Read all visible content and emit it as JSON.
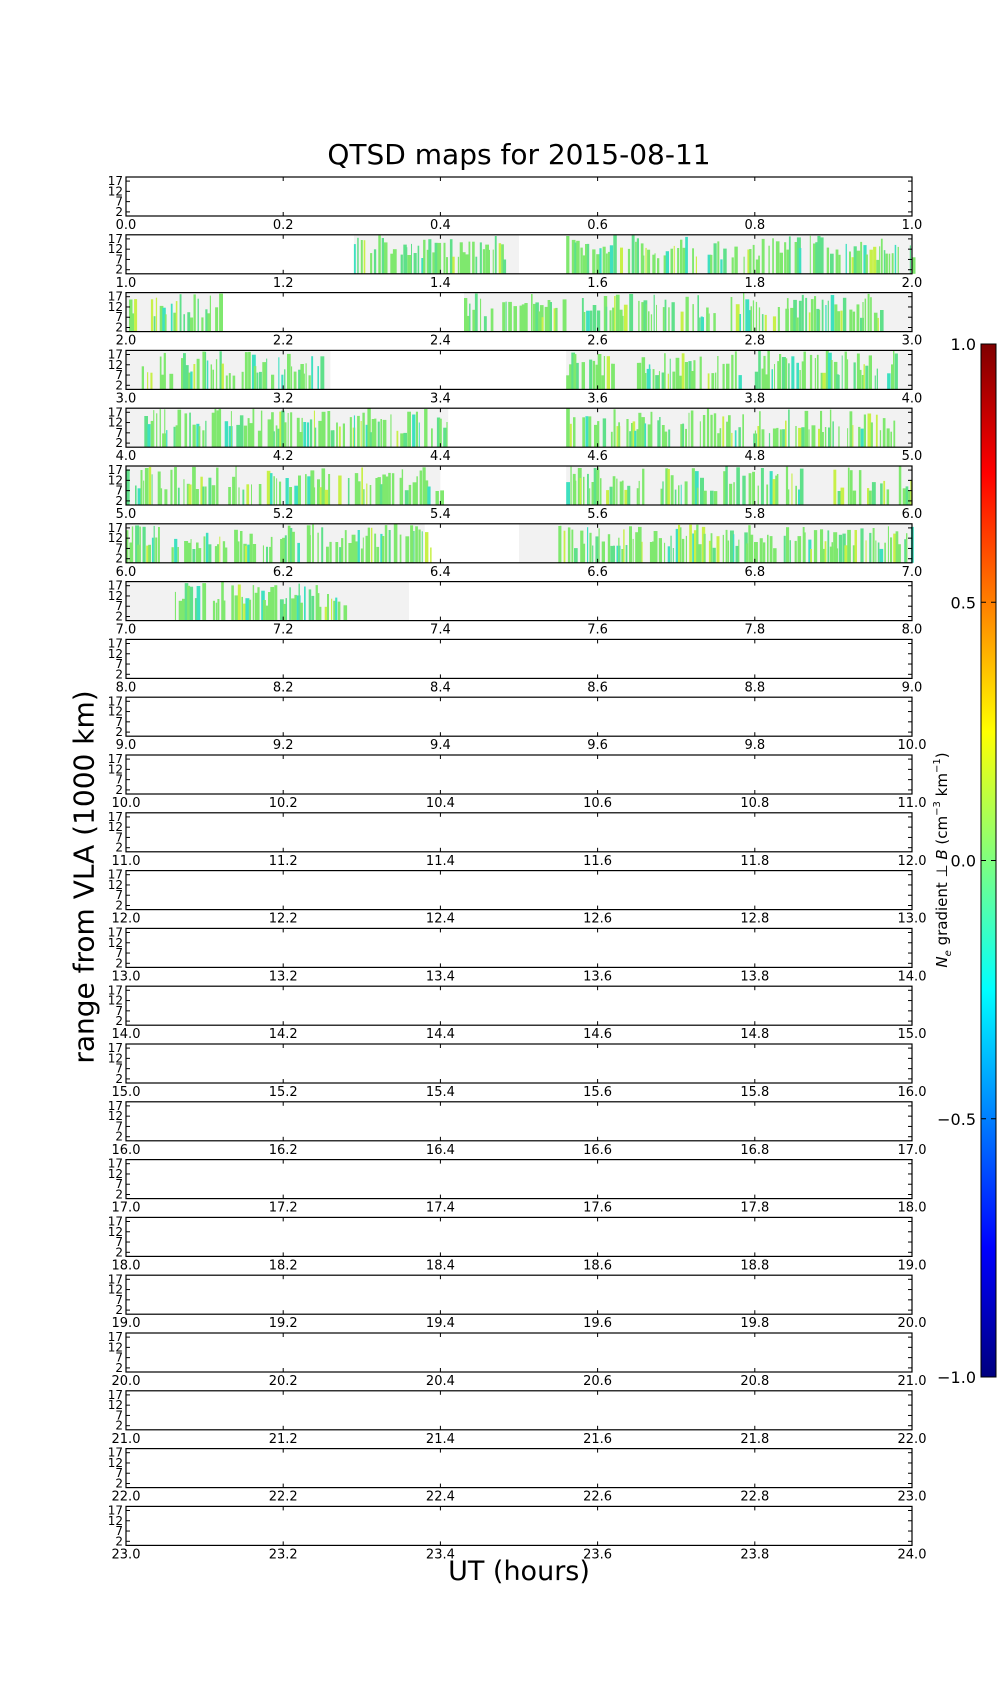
{
  "chart_data": {
    "type": "heatmap",
    "title": "QTSD maps for 2015-08-11",
    "xlabel": "UT (hours)",
    "ylabel": "range from VLA (1000 km)",
    "y_ticks": [
      "2",
      "7",
      "12",
      "17"
    ],
    "ylim": [
      0,
      19
    ],
    "panel_tick_step_hours": 0.2,
    "panels": [
      {
        "start": 0,
        "end": 1,
        "ticks": [
          "0.0",
          "0.2",
          "0.4",
          "0.6",
          "0.8",
          "1.0"
        ],
        "coverage": [],
        "activity": []
      },
      {
        "start": 1,
        "end": 2,
        "ticks": [
          "1.0",
          "1.2",
          "1.4",
          "1.6",
          "1.8",
          "2.0"
        ],
        "coverage": [
          [
            1.29,
            1.5
          ],
          [
            1.56,
            2.0
          ]
        ],
        "activity": [
          [
            1.29,
            1.48
          ],
          [
            1.56,
            1.73
          ],
          [
            1.74,
            1.86
          ],
          [
            1.87,
            2.0
          ]
        ]
      },
      {
        "start": 2,
        "end": 3,
        "ticks": [
          "2.0",
          "2.2",
          "2.4",
          "2.6",
          "2.8",
          "3.0"
        ],
        "coverage": [
          [
            2.0,
            2.12
          ],
          [
            2.43,
            3.0
          ]
        ],
        "activity": [
          [
            2.0,
            2.12
          ],
          [
            2.43,
            2.56
          ],
          [
            2.58,
            2.75
          ],
          [
            2.76,
            2.96
          ]
        ]
      },
      {
        "start": 3,
        "end": 4,
        "ticks": [
          "3.0",
          "3.2",
          "3.4",
          "3.6",
          "3.8",
          "4.0"
        ],
        "coverage": [
          [
            3.0,
            3.26
          ],
          [
            3.56,
            4.0
          ]
        ],
        "activity": [
          [
            3.02,
            3.06
          ],
          [
            3.07,
            3.25
          ],
          [
            3.56,
            3.62
          ],
          [
            3.65,
            3.78
          ],
          [
            3.8,
            3.98
          ]
        ]
      },
      {
        "start": 4,
        "end": 5,
        "ticks": [
          "4.0",
          "4.2",
          "4.4",
          "4.6",
          "4.8",
          "5.0"
        ],
        "coverage": [
          [
            4.0,
            4.41
          ],
          [
            4.56,
            5.0
          ]
        ],
        "activity": [
          [
            4.02,
            4.24
          ],
          [
            4.24,
            4.29
          ],
          [
            4.29,
            4.41
          ],
          [
            4.56,
            4.72
          ],
          [
            4.73,
            4.98
          ]
        ]
      },
      {
        "start": 5,
        "end": 6,
        "ticks": [
          "5.0",
          "5.2",
          "5.4",
          "5.6",
          "5.8",
          "6.0"
        ],
        "coverage": [
          [
            5.0,
            5.4
          ],
          [
            5.56,
            6.0
          ]
        ],
        "activity": [
          [
            5.0,
            5.12
          ],
          [
            5.13,
            5.26
          ],
          [
            5.27,
            5.4
          ],
          [
            5.56,
            5.66
          ],
          [
            5.68,
            5.86
          ],
          [
            5.9,
            6.0
          ]
        ]
      },
      {
        "start": 6,
        "end": 7,
        "ticks": [
          "6.0",
          "6.2",
          "6.4",
          "6.6",
          "6.8",
          "7.0"
        ],
        "coverage": [
          [
            6.0,
            6.38
          ],
          [
            6.5,
            7.0
          ]
        ],
        "activity": [
          [
            6.0,
            6.4
          ],
          [
            6.55,
            7.0
          ]
        ]
      },
      {
        "start": 7,
        "end": 8,
        "ticks": [
          "7.0",
          "7.2",
          "7.4",
          "7.6",
          "7.8",
          "8.0"
        ],
        "coverage": [
          [
            7.0,
            7.36
          ]
        ],
        "activity": [
          [
            7.05,
            7.28
          ]
        ]
      },
      {
        "start": 8,
        "end": 9,
        "ticks": [
          "8.0",
          "8.2",
          "8.4",
          "8.6",
          "8.8",
          "9.0"
        ],
        "coverage": [],
        "activity": []
      },
      {
        "start": 9,
        "end": 10,
        "ticks": [
          "9.0",
          "9.2",
          "9.4",
          "9.6",
          "9.8",
          "10.0"
        ],
        "coverage": [],
        "activity": []
      },
      {
        "start": 10,
        "end": 11,
        "ticks": [
          "10.0",
          "10.2",
          "10.4",
          "10.6",
          "10.8",
          "11.0"
        ],
        "coverage": [],
        "activity": []
      },
      {
        "start": 11,
        "end": 12,
        "ticks": [
          "11.0",
          "11.2",
          "11.4",
          "11.6",
          "11.8",
          "12.0"
        ],
        "coverage": [],
        "activity": []
      },
      {
        "start": 12,
        "end": 13,
        "ticks": [
          "12.0",
          "12.2",
          "12.4",
          "12.6",
          "12.8",
          "13.0"
        ],
        "coverage": [],
        "activity": []
      },
      {
        "start": 13,
        "end": 14,
        "ticks": [
          "13.0",
          "13.2",
          "13.4",
          "13.6",
          "13.8",
          "14.0"
        ],
        "coverage": [],
        "activity": []
      },
      {
        "start": 14,
        "end": 15,
        "ticks": [
          "14.0",
          "14.2",
          "14.4",
          "14.6",
          "14.8",
          "15.0"
        ],
        "coverage": [],
        "activity": []
      },
      {
        "start": 15,
        "end": 16,
        "ticks": [
          "15.0",
          "15.2",
          "15.4",
          "15.6",
          "15.8",
          "16.0"
        ],
        "coverage": [],
        "activity": []
      },
      {
        "start": 16,
        "end": 17,
        "ticks": [
          "16.0",
          "16.2",
          "16.4",
          "16.6",
          "16.8",
          "17.0"
        ],
        "coverage": [],
        "activity": []
      },
      {
        "start": 17,
        "end": 18,
        "ticks": [
          "17.0",
          "17.2",
          "17.4",
          "17.6",
          "17.8",
          "18.0"
        ],
        "coverage": [],
        "activity": []
      },
      {
        "start": 18,
        "end": 19,
        "ticks": [
          "18.0",
          "18.2",
          "18.4",
          "18.6",
          "18.8",
          "19.0"
        ],
        "coverage": [],
        "activity": []
      },
      {
        "start": 19,
        "end": 20,
        "ticks": [
          "19.0",
          "19.2",
          "19.4",
          "19.6",
          "19.8",
          "20.0"
        ],
        "coverage": [],
        "activity": []
      },
      {
        "start": 20,
        "end": 21,
        "ticks": [
          "20.0",
          "20.2",
          "20.4",
          "20.6",
          "20.8",
          "21.0"
        ],
        "coverage": [],
        "activity": []
      },
      {
        "start": 21,
        "end": 22,
        "ticks": [
          "21.0",
          "21.2",
          "21.4",
          "21.6",
          "21.8",
          "22.0"
        ],
        "coverage": [],
        "activity": []
      },
      {
        "start": 22,
        "end": 23,
        "ticks": [
          "22.0",
          "22.2",
          "22.4",
          "22.6",
          "22.8",
          "23.0"
        ],
        "coverage": [],
        "activity": []
      },
      {
        "start": 23,
        "end": 24,
        "ticks": [
          "23.0",
          "23.2",
          "23.4",
          "23.6",
          "23.8",
          "24.0"
        ],
        "coverage": [],
        "activity": []
      }
    ],
    "colorbar": {
      "label": "N_e gradient ⊥ B (cm⁻³ km⁻¹)",
      "label_main": "N",
      "label_sub": "e",
      "label_gradient": " gradient ⊥ ",
      "label_vector": "B",
      "label_units": " (cm",
      "label_exp1": "−3",
      "label_km": " km",
      "label_exp2": "−1",
      "label_close": ")",
      "range": [
        -1.0,
        1.0
      ],
      "ticks": [
        "1.0",
        "0.5",
        "0.0",
        "−0.5",
        "−1.0"
      ],
      "tick_values": [
        1.0,
        0.5,
        0.0,
        -0.5,
        -1.0
      ],
      "colormap": "jet",
      "colormap_stops": [
        "#00007f",
        "#0000ff",
        "#007fff",
        "#00ffff",
        "#7fff7f",
        "#ffff00",
        "#ff7f00",
        "#ff0000",
        "#7f0000"
      ]
    },
    "colors": {
      "coverage_fill": "#f2f2f2",
      "active_main": "#7fe86e",
      "active_alt": "#5fe08a",
      "active_cyan": "#3ee0c0",
      "active_yellow": "#c8f048"
    }
  }
}
